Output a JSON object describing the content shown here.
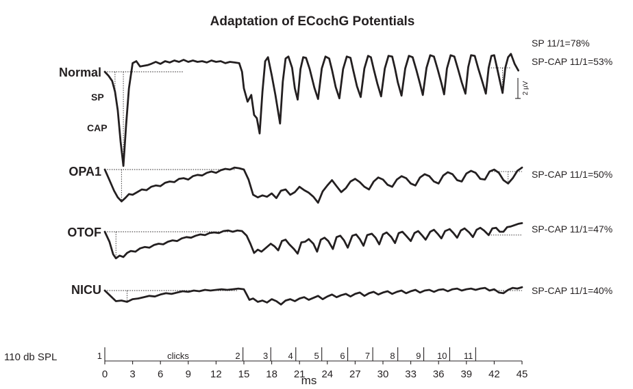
{
  "chart_data": {
    "type": "line",
    "title": "Adaptation of ECochG Potentials",
    "xlabel": "ms",
    "x_ticks": [
      0,
      3,
      6,
      9,
      12,
      15,
      18,
      21,
      24,
      27,
      30,
      33,
      36,
      39,
      42,
      45
    ],
    "xlim": [
      0,
      45
    ],
    "amplitude_unit": "µV",
    "scale_bar_label": "2 µV",
    "scale_bar_value": 2,
    "stimulus": {
      "label": "110 db SPL",
      "clicks_label": "clicks",
      "markers": [
        {
          "label": "1",
          "t": 0
        },
        {
          "label": "2",
          "t": 14.9
        },
        {
          "label": "3",
          "t": 17.9
        },
        {
          "label": "4",
          "t": 20.6
        },
        {
          "label": "5",
          "t": 23.4
        },
        {
          "label": "6",
          "t": 26.2
        },
        {
          "label": "7",
          "t": 28.9
        },
        {
          "label": "8",
          "t": 31.6
        },
        {
          "label": "9",
          "t": 34.4
        },
        {
          "label": "10",
          "t": 37.2
        },
        {
          "label": "11",
          "t": 40.0
        }
      ]
    },
    "series": [
      {
        "name": "Normal",
        "ratios": [
          "SP 11/1=78%",
          "SP-CAP 11/1=53%"
        ],
        "labels": {
          "sp": "SP",
          "cap": "CAP"
        },
        "t": [
          0.0,
          0.4,
          0.8,
          1.1,
          1.4,
          1.7,
          2.0,
          2.3,
          2.6,
          3.0,
          3.4,
          3.8,
          4.2,
          4.6,
          5.0,
          5.5,
          6.0,
          6.5,
          7.0,
          7.5,
          8.0,
          8.5,
          9.0,
          9.5,
          10.0,
          10.5,
          11.0,
          11.5,
          12.0,
          12.5,
          13.0,
          13.5,
          14.0,
          14.5,
          14.8,
          15.0,
          15.4,
          15.8,
          16.1,
          16.4,
          16.7,
          17.0,
          17.3,
          17.6,
          18.0,
          18.4,
          18.9,
          19.2,
          19.5,
          19.8,
          20.2,
          20.5,
          20.8,
          21.1,
          21.4,
          21.7,
          22.1,
          22.6,
          23.0,
          23.4,
          23.8,
          24.2,
          24.5,
          24.9,
          25.3,
          25.7,
          26.1,
          26.5,
          26.8,
          27.2,
          27.6,
          28.0,
          28.4,
          28.7,
          29.0,
          29.4,
          29.8,
          30.2,
          30.6,
          31.0,
          31.3,
          31.6,
          32.0,
          32.4,
          32.8,
          33.2,
          33.6,
          34.0,
          34.3,
          34.7,
          35.1,
          35.5,
          35.9,
          36.3,
          36.6,
          36.9,
          37.3,
          37.7,
          38.1,
          38.5,
          38.9,
          39.2,
          39.5,
          39.9,
          40.3,
          40.7,
          41.1,
          41.4,
          41.7,
          42.0,
          42.3,
          42.6,
          42.9,
          43.2,
          43.5,
          43.8,
          44.2,
          44.6,
          45.0
        ],
        "v": [
          0.0,
          -0.6,
          -1.4,
          -3.0,
          -5.8,
          -10.5,
          -14.2,
          -8.0,
          -2.5,
          1.3,
          1.6,
          0.8,
          0.9,
          1.0,
          1.2,
          1.5,
          1.2,
          1.6,
          1.4,
          1.7,
          1.5,
          1.8,
          1.5,
          1.7,
          1.5,
          1.6,
          1.4,
          1.7,
          1.5,
          1.6,
          1.3,
          1.5,
          1.4,
          1.3,
          0.0,
          -2.5,
          -4.5,
          -3.5,
          -6.5,
          -7.0,
          -9.3,
          -3.0,
          1.6,
          2.2,
          -0.5,
          -3.5,
          -7.8,
          -1.5,
          2.0,
          2.3,
          0.6,
          -2.5,
          -4.2,
          0.4,
          2.2,
          2.1,
          0.4,
          -2.4,
          -4.1,
          0.5,
          2.3,
          2.0,
          0.3,
          -2.3,
          -4.0,
          0.4,
          2.3,
          2.1,
          0.2,
          -2.2,
          -3.8,
          0.5,
          2.4,
          2.2,
          0.4,
          -1.8,
          -3.7,
          0.5,
          2.4,
          2.3,
          0.5,
          -1.6,
          -3.6,
          0.5,
          2.4,
          2.2,
          0.3,
          -1.8,
          -3.5,
          0.6,
          2.5,
          2.3,
          0.4,
          -1.7,
          -3.4,
          0.5,
          2.5,
          2.3,
          0.4,
          -1.6,
          -3.3,
          0.7,
          2.5,
          2.4,
          0.4,
          -1.4,
          -3.3,
          0.6,
          2.4,
          2.5,
          0.6,
          -1.3,
          -3.2,
          0.6,
          2.2,
          2.7,
          1.2,
          0.2
        ]
      },
      {
        "name": "OPA1",
        "ratio": "SP-CAP 11/1=50%",
        "t": [
          0.0,
          0.5,
          1.0,
          1.4,
          1.8,
          2.2,
          2.6,
          3.0,
          3.5,
          4.0,
          4.5,
          5.0,
          5.5,
          6.0,
          6.5,
          7.0,
          7.5,
          8.0,
          8.5,
          9.0,
          9.5,
          10.0,
          10.5,
          11.0,
          11.5,
          12.0,
          12.5,
          13.0,
          13.5,
          14.0,
          14.5,
          15.0,
          15.5,
          16.0,
          16.5,
          17.0,
          17.5,
          18.0,
          18.5,
          19.0,
          19.5,
          20.0,
          20.5,
          21.0,
          21.5,
          22.0,
          22.5,
          23.0,
          23.5,
          24.0,
          24.5,
          25.0,
          25.5,
          26.0,
          26.5,
          27.0,
          27.5,
          28.0,
          28.5,
          29.0,
          29.5,
          30.0,
          30.5,
          31.0,
          31.5,
          32.0,
          32.5,
          33.0,
          33.5,
          34.0,
          34.5,
          35.0,
          35.5,
          36.0,
          36.5,
          37.0,
          37.5,
          38.0,
          38.5,
          39.0,
          39.5,
          40.0,
          40.5,
          41.0,
          41.5,
          42.0,
          42.5,
          43.0,
          43.5,
          44.0,
          44.5,
          45.0
        ],
        "v": [
          0.0,
          -1.6,
          -3.2,
          -4.2,
          -4.8,
          -4.3,
          -3.7,
          -3.8,
          -3.4,
          -3.0,
          -3.1,
          -2.6,
          -2.4,
          -2.5,
          -2.0,
          -1.8,
          -1.9,
          -1.4,
          -1.3,
          -1.5,
          -1.0,
          -0.8,
          -0.9,
          -0.5,
          -0.3,
          -0.5,
          -0.1,
          0.1,
          0.0,
          0.3,
          0.2,
          0.0,
          -1.5,
          -3.8,
          -4.2,
          -3.9,
          -4.1,
          -3.6,
          -4.3,
          -3.2,
          -3.0,
          -3.8,
          -3.4,
          -2.6,
          -3.1,
          -3.5,
          -4.1,
          -5.0,
          -3.3,
          -2.4,
          -1.6,
          -2.5,
          -3.4,
          -2.8,
          -1.8,
          -1.4,
          -1.9,
          -2.6,
          -3.0,
          -1.8,
          -1.2,
          -1.5,
          -2.3,
          -2.6,
          -1.5,
          -1.0,
          -1.3,
          -2.1,
          -2.4,
          -1.2,
          -0.7,
          -1.0,
          -1.8,
          -2.1,
          -0.9,
          -0.4,
          -0.7,
          -1.6,
          -1.8,
          -0.6,
          -0.2,
          -0.5,
          -1.4,
          -1.5,
          -0.3,
          0.0,
          -0.5,
          -1.6,
          -2.1,
          -1.3,
          -0.2,
          0.3
        ]
      },
      {
        "name": "OTOF",
        "ratio": "SP-CAP 11/1=47%",
        "t": [
          0.0,
          0.5,
          0.9,
          1.2,
          1.6,
          2.0,
          2.4,
          2.8,
          3.3,
          3.8,
          4.3,
          4.8,
          5.3,
          5.8,
          6.3,
          6.8,
          7.3,
          7.8,
          8.3,
          8.8,
          9.3,
          9.8,
          10.3,
          10.8,
          11.3,
          11.8,
          12.3,
          12.8,
          13.3,
          13.8,
          14.3,
          14.8,
          15.3,
          15.7,
          16.1,
          16.5,
          16.9,
          17.4,
          17.9,
          18.3,
          18.7,
          19.1,
          19.5,
          19.9,
          20.4,
          20.8,
          21.2,
          21.6,
          22.0,
          22.5,
          22.9,
          23.3,
          23.7,
          24.1,
          24.6,
          25.0,
          25.4,
          25.8,
          26.2,
          26.7,
          27.1,
          27.5,
          27.9,
          28.3,
          28.8,
          29.2,
          29.6,
          30.0,
          30.4,
          30.9,
          31.3,
          31.7,
          32.1,
          32.5,
          33.0,
          33.4,
          33.8,
          34.2,
          34.6,
          35.1,
          35.5,
          35.9,
          36.3,
          36.7,
          37.2,
          37.6,
          38.0,
          38.4,
          38.8,
          39.3,
          39.7,
          40.1,
          40.5,
          40.9,
          41.4,
          41.8,
          42.2,
          42.6,
          43.0,
          43.4,
          43.8,
          44.2,
          44.6,
          45.0
        ],
        "v": [
          0.0,
          -1.5,
          -3.4,
          -4.0,
          -3.6,
          -3.8,
          -3.2,
          -2.9,
          -3.0,
          -2.5,
          -2.3,
          -2.4,
          -2.0,
          -1.8,
          -1.9,
          -1.5,
          -1.3,
          -1.4,
          -1.0,
          -0.8,
          -0.9,
          -0.6,
          -0.4,
          -0.5,
          -0.2,
          -0.1,
          -0.2,
          0.1,
          0.2,
          0.0,
          0.2,
          0.1,
          -0.6,
          -1.8,
          -3.2,
          -2.7,
          -3.0,
          -2.4,
          -1.8,
          -2.2,
          -2.8,
          -1.4,
          -1.2,
          -1.9,
          -2.6,
          -3.3,
          -1.6,
          -1.5,
          -1.1,
          -1.8,
          -3.0,
          -1.2,
          -0.9,
          -1.4,
          -2.6,
          -0.8,
          -0.6,
          -1.3,
          -2.4,
          -0.6,
          -0.4,
          -1.1,
          -2.1,
          -0.5,
          -0.3,
          -0.9,
          -1.9,
          -0.4,
          -0.1,
          -0.8,
          -1.7,
          -0.2,
          0.0,
          -0.6,
          -1.4,
          -0.2,
          0.1,
          -0.5,
          -1.2,
          0.0,
          0.3,
          -0.3,
          -1.0,
          0.1,
          0.4,
          -0.2,
          -0.9,
          0.2,
          0.5,
          -0.1,
          -0.8,
          0.3,
          0.6,
          0.2,
          -0.5,
          0.5,
          0.6,
          0.0,
          0.0,
          0.7,
          0.8,
          1.0,
          1.2,
          1.3
        ]
      },
      {
        "name": "NICU",
        "ratio": "SP-CAP 11/1=40%",
        "t": [
          0.0,
          0.6,
          1.2,
          1.8,
          2.4,
          3.0,
          3.6,
          4.2,
          4.8,
          5.4,
          6.0,
          6.6,
          7.2,
          7.8,
          8.4,
          9.0,
          9.6,
          10.2,
          10.8,
          11.4,
          12.0,
          12.6,
          13.2,
          13.8,
          14.4,
          15.0,
          15.3,
          15.6,
          16.0,
          16.5,
          17.0,
          17.5,
          18.0,
          18.5,
          19.0,
          19.5,
          20.0,
          20.5,
          21.0,
          21.5,
          22.0,
          22.5,
          23.0,
          23.5,
          24.0,
          24.5,
          25.0,
          25.5,
          26.0,
          26.5,
          27.0,
          27.5,
          28.0,
          28.5,
          29.0,
          29.5,
          30.0,
          30.5,
          31.0,
          31.5,
          32.0,
          32.5,
          33.0,
          33.5,
          34.0,
          34.5,
          35.0,
          35.5,
          36.0,
          36.5,
          37.0,
          37.5,
          38.0,
          38.5,
          39.0,
          39.5,
          40.0,
          40.5,
          41.0,
          41.5,
          42.0,
          42.5,
          43.0,
          43.5,
          44.0,
          44.5,
          45.0
        ],
        "v": [
          0.0,
          -0.8,
          -1.6,
          -1.5,
          -1.7,
          -1.3,
          -1.2,
          -1.0,
          -0.8,
          -0.9,
          -0.6,
          -0.4,
          -0.5,
          -0.3,
          -0.1,
          -0.2,
          0.0,
          -0.1,
          0.1,
          0.0,
          0.1,
          0.2,
          0.1,
          0.2,
          0.3,
          0.2,
          -0.6,
          -1.4,
          -1.2,
          -1.7,
          -1.5,
          -1.8,
          -1.3,
          -1.6,
          -2.1,
          -1.5,
          -1.3,
          -1.6,
          -1.2,
          -1.0,
          -1.4,
          -1.1,
          -0.8,
          -1.3,
          -0.9,
          -0.6,
          -1.0,
          -0.7,
          -0.5,
          -0.9,
          -0.5,
          -0.3,
          -0.8,
          -0.4,
          -0.2,
          -0.6,
          -0.3,
          -0.1,
          -0.5,
          -0.2,
          0.0,
          -0.4,
          -0.1,
          0.1,
          -0.3,
          0.0,
          0.1,
          -0.2,
          0.1,
          0.2,
          -0.1,
          0.2,
          0.3,
          0.0,
          0.2,
          0.3,
          0.1,
          0.3,
          0.4,
          0.0,
          0.2,
          -0.3,
          -0.4,
          0.1,
          0.4,
          0.3,
          0.5
        ]
      }
    ]
  }
}
